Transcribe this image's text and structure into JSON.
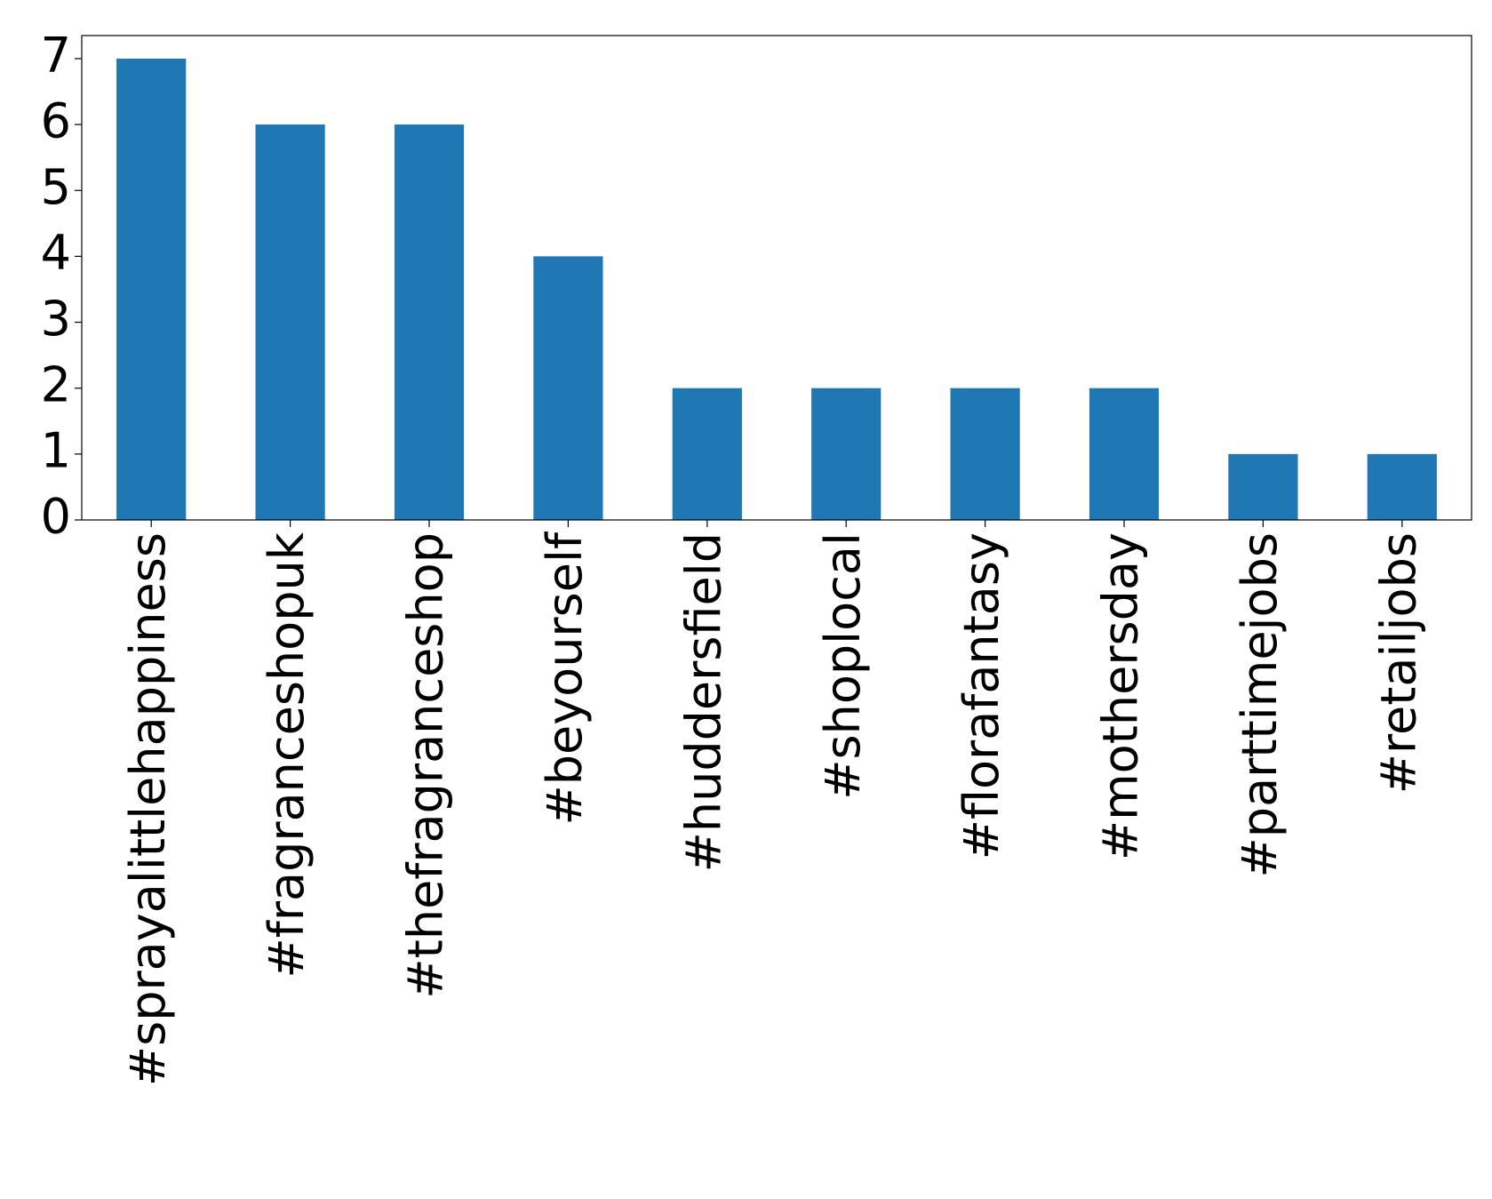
{
  "chart_data": {
    "type": "bar",
    "categories": [
      "#sprayalittlehappiness",
      "#fragranceshopuk",
      "#thefragranceshop",
      "#beyourself",
      "#huddersfield",
      "#shoplocal",
      "#florafantasy",
      "#mothersday",
      "#parttimejobs",
      "#retailjobs"
    ],
    "values": [
      7,
      6,
      6,
      4,
      2,
      2,
      2,
      2,
      1,
      1
    ],
    "color": "#1f77b4",
    "ylim": [
      0,
      7.35
    ],
    "yticks": [
      0,
      1,
      2,
      3,
      4,
      5,
      6,
      7
    ],
    "grid": false
  }
}
